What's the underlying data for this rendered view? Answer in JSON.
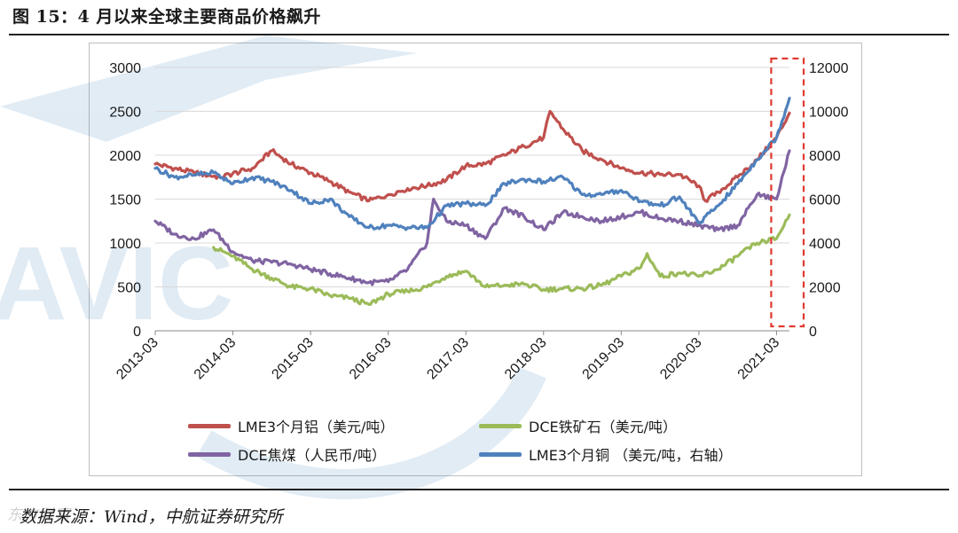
{
  "figure": {
    "title": "图 15：4 月以来全球主要商品价格飙升",
    "source": "数据来源：Wind，中航证券研究所",
    "watermark": "东方财富"
  },
  "colors": {
    "aluminum": "#c0504d",
    "iron_ore": "#9bbb59",
    "coke": "#8064a2",
    "copper": "#4f81bd",
    "highlight": "#e03a2f"
  },
  "chart_data": {
    "type": "line",
    "left_axis": {
      "ylim": [
        0,
        3000
      ],
      "ticks": [
        0,
        500,
        1000,
        1500,
        2000,
        2500,
        3000
      ]
    },
    "right_axis": {
      "ylim": [
        0,
        12000
      ],
      "ticks": [
        0,
        2000,
        4000,
        6000,
        8000,
        10000,
        12000
      ]
    },
    "x_tick_labels": [
      "2013-03",
      "2014-03",
      "2015-03",
      "2016-03",
      "2017-03",
      "2018-03",
      "2019-03",
      "2020-03",
      "2021-03"
    ],
    "x_range": [
      "2013-03",
      "2021-05"
    ],
    "legend": [
      {
        "key": "aluminum",
        "label": "LME3个月铝（美元/吨）"
      },
      {
        "key": "iron_ore",
        "label": "DCE铁矿石（美元/吨）"
      },
      {
        "key": "coke",
        "label": "DCE焦煤（人民币/吨）"
      },
      {
        "key": "copper",
        "label": "LME3个月铜 （美元/吨，右轴）"
      }
    ],
    "highlight_region": {
      "from": "2021-03",
      "to": "2021-05"
    },
    "series": [
      {
        "key": "aluminum",
        "name": "LME3个月铝（美元/吨）",
        "axis": "left",
        "x": [
          "2013-03",
          "2013-06",
          "2013-09",
          "2014-01",
          "2014-06",
          "2014-09",
          "2014-12",
          "2015-03",
          "2015-06",
          "2015-09",
          "2015-12",
          "2016-03",
          "2016-06",
          "2016-09",
          "2016-12",
          "2017-03",
          "2017-06",
          "2017-09",
          "2017-12",
          "2018-03",
          "2018-04",
          "2018-06",
          "2018-09",
          "2018-12",
          "2019-03",
          "2019-06",
          "2019-09",
          "2019-12",
          "2020-03",
          "2020-04",
          "2020-06",
          "2020-09",
          "2020-12",
          "2021-03",
          "2021-05"
        ],
        "values": [
          1900,
          1850,
          1800,
          1750,
          1850,
          2050,
          1900,
          1800,
          1700,
          1580,
          1480,
          1550,
          1620,
          1650,
          1720,
          1880,
          1900,
          2000,
          2100,
          2200,
          2500,
          2300,
          2050,
          1950,
          1850,
          1800,
          1780,
          1780,
          1650,
          1480,
          1580,
          1750,
          1950,
          2200,
          2480
        ]
      },
      {
        "key": "iron_ore",
        "name": "DCE铁矿石（美元/吨）",
        "axis": "left",
        "x": [
          "2013-12",
          "2014-03",
          "2014-06",
          "2014-09",
          "2014-12",
          "2015-03",
          "2015-06",
          "2015-09",
          "2015-12",
          "2016-03",
          "2016-06",
          "2016-09",
          "2016-12",
          "2017-03",
          "2017-06",
          "2017-09",
          "2017-12",
          "2018-03",
          "2018-06",
          "2018-09",
          "2018-12",
          "2019-03",
          "2019-06",
          "2019-07",
          "2019-09",
          "2019-12",
          "2020-03",
          "2020-06",
          "2020-09",
          "2020-12",
          "2021-03",
          "2021-05"
        ],
        "values": [
          950,
          850,
          700,
          600,
          500,
          480,
          400,
          370,
          300,
          420,
          450,
          500,
          620,
          680,
          500,
          520,
          530,
          470,
          480,
          480,
          520,
          620,
          720,
          880,
          620,
          660,
          620,
          700,
          850,
          1000,
          1050,
          1320
        ]
      },
      {
        "key": "coke",
        "name": "DCE焦煤（人民币/吨）",
        "axis": "left",
        "x": [
          "2013-03",
          "2013-06",
          "2013-09",
          "2013-12",
          "2014-03",
          "2014-06",
          "2014-09",
          "2014-12",
          "2015-03",
          "2015-06",
          "2015-09",
          "2015-12",
          "2016-03",
          "2016-06",
          "2016-09",
          "2016-10",
          "2016-12",
          "2017-03",
          "2017-06",
          "2017-09",
          "2017-12",
          "2018-03",
          "2018-06",
          "2018-09",
          "2018-12",
          "2019-03",
          "2019-06",
          "2019-09",
          "2019-12",
          "2020-03",
          "2020-06",
          "2020-09",
          "2020-12",
          "2021-03",
          "2021-05"
        ],
        "values": [
          1250,
          1100,
          1050,
          1150,
          900,
          800,
          780,
          760,
          700,
          650,
          600,
          550,
          560,
          700,
          1000,
          1500,
          1250,
          1200,
          1050,
          1400,
          1300,
          1150,
          1350,
          1300,
          1250,
          1300,
          1350,
          1280,
          1250,
          1200,
          1150,
          1200,
          1550,
          1500,
          2050
        ]
      },
      {
        "key": "copper",
        "name": "LME3个月铜 （美元/吨，右轴）",
        "axis": "right",
        "x": [
          "2013-03",
          "2013-06",
          "2013-09",
          "2013-12",
          "2014-03",
          "2014-06",
          "2014-09",
          "2014-12",
          "2015-03",
          "2015-06",
          "2015-09",
          "2015-12",
          "2016-03",
          "2016-06",
          "2016-09",
          "2016-12",
          "2017-03",
          "2017-06",
          "2017-09",
          "2017-12",
          "2018-03",
          "2018-06",
          "2018-09",
          "2018-12",
          "2019-03",
          "2019-06",
          "2019-09",
          "2019-12",
          "2020-03",
          "2020-06",
          "2020-09",
          "2020-12",
          "2021-03",
          "2021-05"
        ],
        "values": [
          7400,
          7000,
          7100,
          7200,
          6700,
          7000,
          6800,
          6400,
          5800,
          6000,
          5200,
          4700,
          4800,
          4700,
          4700,
          5700,
          5800,
          5700,
          6700,
          6900,
          6800,
          7000,
          6200,
          6200,
          6400,
          5900,
          5700,
          6100,
          4900,
          5700,
          6700,
          7800,
          8800,
          10600
        ]
      }
    ]
  }
}
